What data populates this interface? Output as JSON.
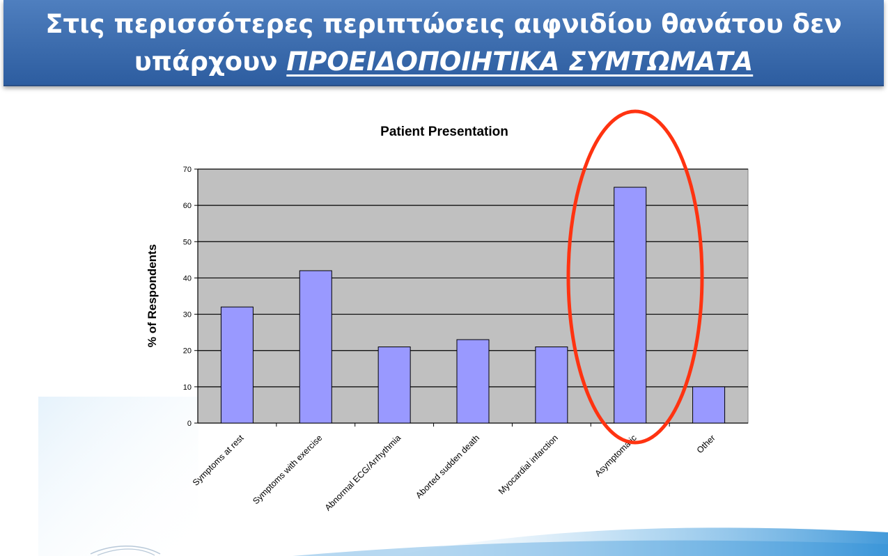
{
  "header": {
    "line1": "Στις περισσότερες περιπτώσεις αιφνιδίου θανάτου δεν",
    "line2_plain": "υπάρχουν ",
    "line2_emph": "ΠΡΟΕΙΔΟΠΟΙΗΤΙΚΑ ΣΥΜΤΩΜΑΤΑ"
  },
  "colors": {
    "header_bg": "#3f6fb0",
    "plot_bg": "#c0c0c0",
    "bar_fill": "#9999ff",
    "highlight_ellipse": "#ff3311"
  },
  "chart_data": {
    "type": "bar",
    "title": "Patient Presentation",
    "xlabel": "",
    "ylabel": "% of Respondents",
    "ylim": [
      0,
      70
    ],
    "yticks": [
      0,
      10,
      20,
      30,
      40,
      50,
      60,
      70
    ],
    "grid": true,
    "legend": "none",
    "categories": [
      "Symptoms at rest",
      "Symptoms with exercise",
      "Abnormal ECG/Arrhythmia",
      "Aborted sudden death",
      "Myocardial infarction",
      "Asymptomatic",
      "Other"
    ],
    "values": [
      32,
      42,
      21,
      23,
      21,
      65,
      10
    ],
    "highlighted_category": "Asymptomatic"
  }
}
